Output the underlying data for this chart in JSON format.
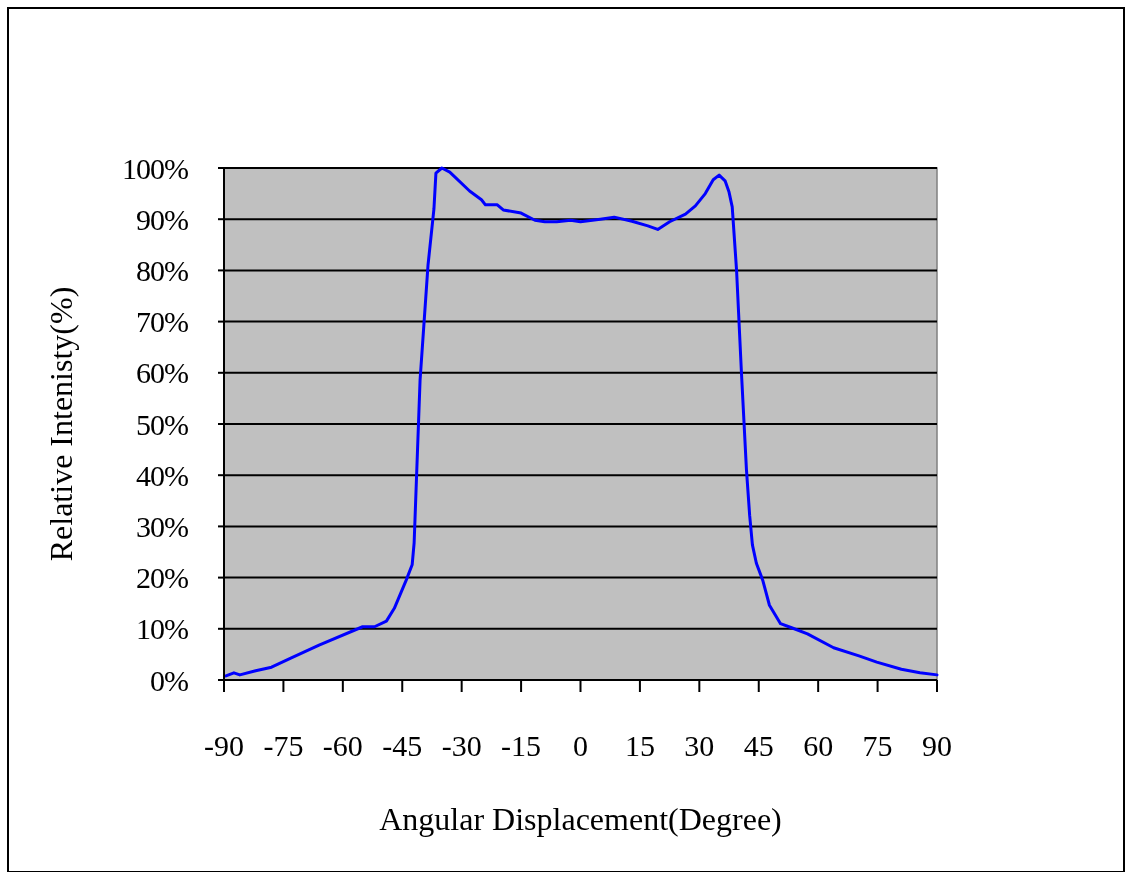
{
  "chart_data": {
    "type": "line",
    "xlabel": "Angular Displacement(Degree)",
    "ylabel": "Relative Intenisty(%)",
    "x": [
      -89.5,
      -87.5,
      -86,
      -82,
      -78,
      -73,
      -66,
      -55,
      -52,
      -49,
      -47,
      -44,
      -42.5,
      -42,
      -40.5,
      -38.5,
      -37,
      -36.5,
      -35,
      -33,
      -28,
      -25,
      -24,
      -21,
      -19.5,
      -15,
      -11.5,
      -9,
      -6,
      -2.5,
      0,
      5,
      8.5,
      13,
      17,
      19.5,
      22.5,
      26.5,
      29,
      31.5,
      33.5,
      35,
      36.5,
      37.5,
      38.3,
      39.4,
      40.6,
      41.9,
      42.7,
      43.4,
      44.4,
      46,
      47.7,
      50.5,
      53.3,
      57.3,
      63.9,
      70.3,
      74.8,
      81,
      85.7,
      90
    ],
    "series": [
      {
        "color": "#0000ff",
        "values": [
          0.8,
          1.4,
          1,
          1.8,
          2.5,
          4.3,
          6.8,
          10.4,
          10.4,
          11.5,
          14,
          19.5,
          22.5,
          26.8,
          58.6,
          81,
          92,
          99,
          100,
          99.2,
          95.5,
          93.8,
          92.8,
          92.8,
          91.8,
          91.2,
          89.8,
          89.5,
          89.5,
          89.8,
          89.5,
          90,
          90.4,
          89.6,
          88.7,
          88,
          89.5,
          91,
          92.6,
          95,
          97.7,
          98.6,
          97.5,
          95.3,
          92.4,
          80,
          60.5,
          41,
          32.2,
          26.4,
          22.8,
          19.5,
          14.6,
          11,
          10.2,
          9,
          6.3,
          4.7,
          3.5,
          2.1,
          1.4,
          1
        ]
      }
    ],
    "xlim": [
      -90,
      90
    ],
    "xticks": [
      -90,
      -75,
      -60,
      -45,
      -30,
      -15,
      0,
      15,
      30,
      45,
      60,
      75,
      90
    ],
    "ylim": [
      0,
      100
    ],
    "yticks": [
      {
        "value": 0,
        "label": "0%"
      },
      {
        "value": 10,
        "label": "10%"
      },
      {
        "value": 20,
        "label": "20%"
      },
      {
        "value": 30,
        "label": "30%"
      },
      {
        "value": 40,
        "label": "40%"
      },
      {
        "value": 50,
        "label": "50%"
      },
      {
        "value": 60,
        "label": "60%"
      },
      {
        "value": 70,
        "label": "70%"
      },
      {
        "value": 80,
        "label": "80%"
      },
      {
        "value": 90,
        "label": "90%"
      },
      {
        "value": 100,
        "label": "100%"
      }
    ],
    "grid": "y",
    "marker": "none",
    "line_style": "solid"
  }
}
